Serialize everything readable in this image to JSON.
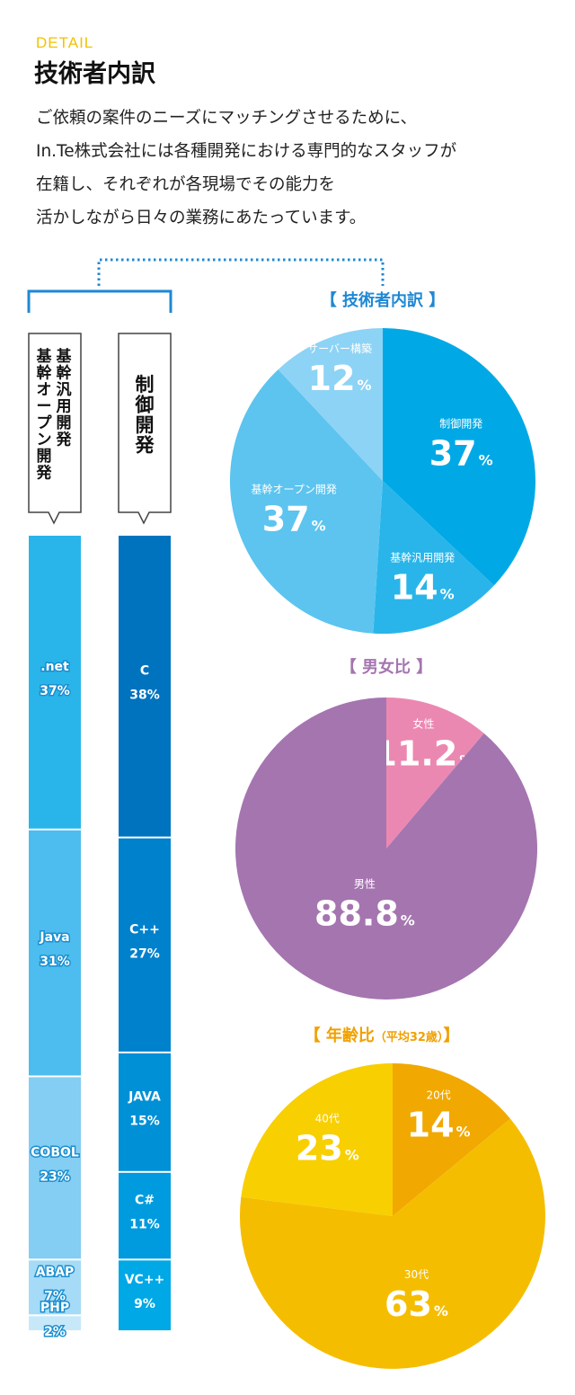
{
  "header": {
    "label": "DETAIL",
    "title": "技術者内訳",
    "intro": [
      "ご依頼の案件のニーズにマッチングさせるために、",
      "In.Te株式会社には各種開発における専門的なスタッフが",
      "在籍し、それぞれが各現場でその能力を",
      "活かしながら日々の業務にあたっています。"
    ]
  },
  "colors": {
    "accent": "#f2c200",
    "bracket": "#1e88d4",
    "pie1": [
      "#00a9e6",
      "#29b5ea",
      "#5cc4ef",
      "#8dd3f5"
    ],
    "pie2": [
      "#a575b0",
      "#eb88b2"
    ],
    "pie3": [
      "#f1a800",
      "#f5bd00",
      "#f8cf00"
    ],
    "bar_left": [
      "#29b5ea",
      "#4cbdee",
      "#84cdf3",
      "#a5dbf6",
      "#c7e8f9"
    ],
    "bar_right": [
      "#0073bf",
      "#0081cc",
      "#0090d6",
      "#009bde",
      "#00a8e6"
    ]
  },
  "chart_data": [
    {
      "type": "bar",
      "stacked": true,
      "title": "基幹汎用開発\n基幹オープン開発",
      "categories": [
        ".net",
        "Java",
        "COBOL",
        "ABAP",
        "PHP"
      ],
      "values": [
        37,
        31,
        23,
        7,
        2
      ],
      "unit": "%"
    },
    {
      "type": "bar",
      "stacked": true,
      "title": "制御開発",
      "categories": [
        "C",
        "C++",
        "JAVA",
        "C#",
        "VC++"
      ],
      "values": [
        38,
        27,
        15,
        11,
        9
      ],
      "unit": "%"
    },
    {
      "type": "pie",
      "title": "【 技術者内訳 】",
      "categories": [
        "制御開発",
        "基幹汎用開発",
        "基幹オープン開発",
        "サーバー構築"
      ],
      "values": [
        37,
        14,
        37,
        12
      ],
      "unit": "%"
    },
    {
      "type": "pie",
      "title": "【 男女比 】",
      "categories": [
        "男性",
        "女性"
      ],
      "values": [
        88.8,
        11.2
      ],
      "unit": "%"
    },
    {
      "type": "pie",
      "title": "【 年齢比",
      "title_note": "（平均32歳）",
      "title_end": "】",
      "categories": [
        "20代",
        "30代",
        "40代"
      ],
      "values": [
        14,
        63,
        23
      ],
      "unit": "%"
    }
  ]
}
